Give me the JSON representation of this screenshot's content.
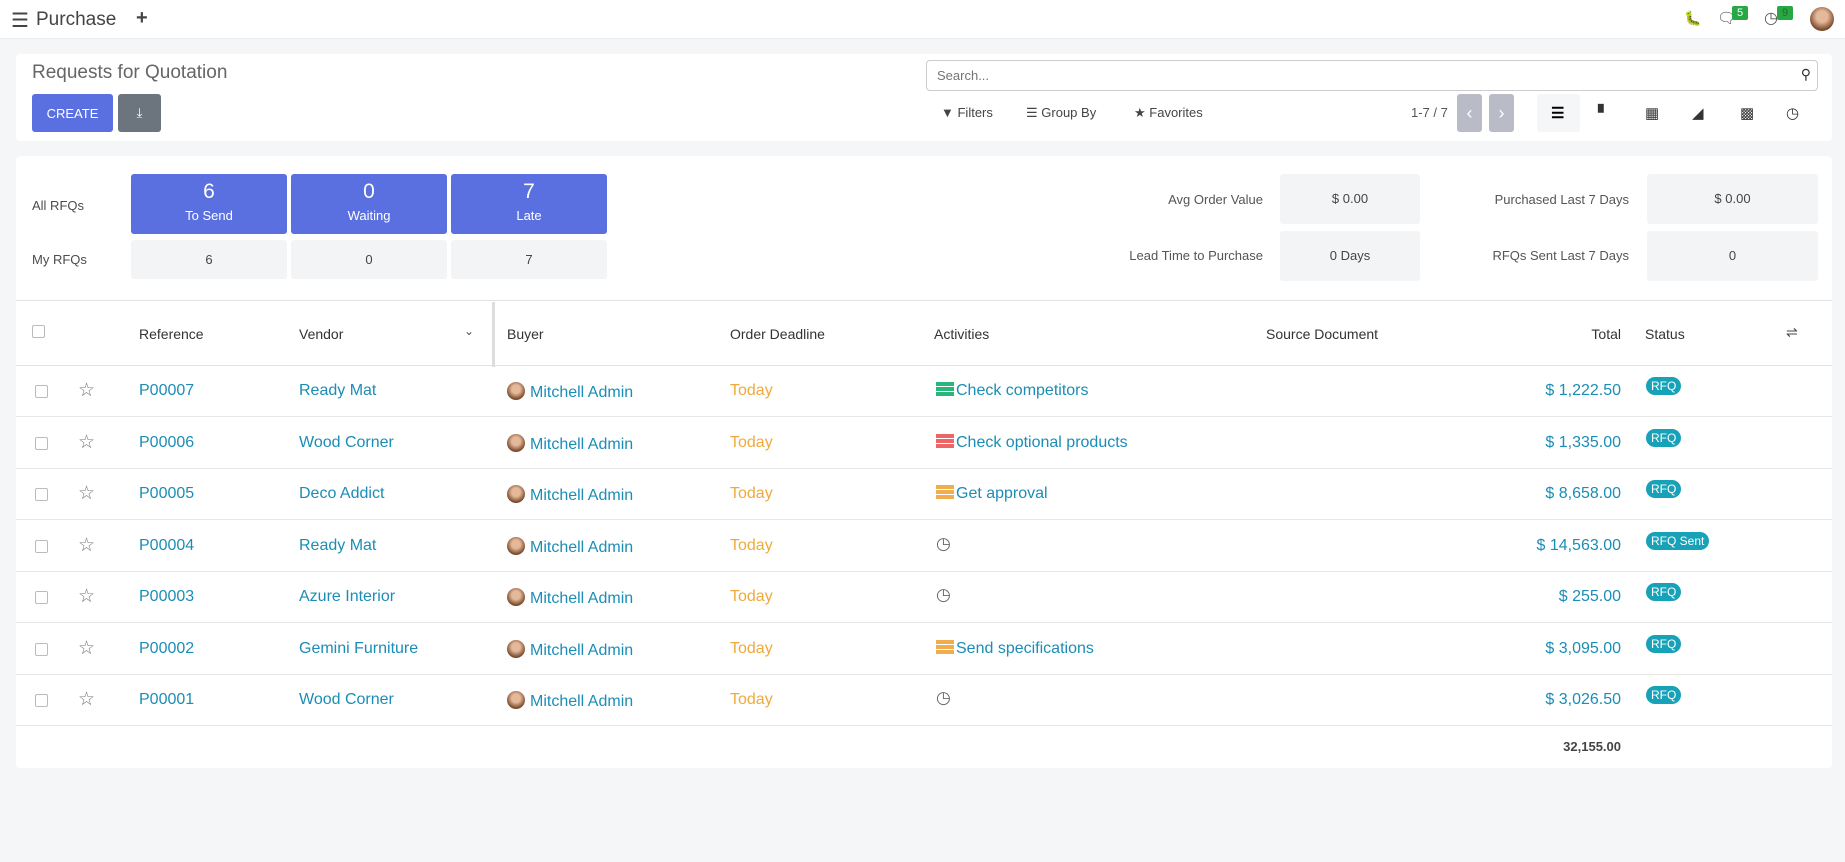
{
  "topbar": {
    "app_title": "Purchase",
    "menu_icon": "hamburger-icon",
    "new_icon": "plus-icon",
    "messages_count": "5",
    "activities_count": "9"
  },
  "control": {
    "title": "Requests for Quotation",
    "create_label": "CREATE",
    "download_icon": "download-icon",
    "search_placeholder": "Search...",
    "filters_label": "Filters",
    "groupby_label": "Group By",
    "favorites_label": "Favorites",
    "pager": "1-7 / 7",
    "views": [
      "list",
      "kanban",
      "pivot",
      "graph",
      "calendar",
      "activity"
    ],
    "active_view": "list"
  },
  "dashboard": {
    "all_label": "All RFQs",
    "my_label": "My RFQs",
    "tiles": [
      {
        "value": "6",
        "label": "To Send",
        "mine": "6"
      },
      {
        "value": "0",
        "label": "Waiting",
        "mine": "0"
      },
      {
        "value": "7",
        "label": "Late",
        "mine": "7"
      }
    ],
    "stats": [
      {
        "label": "Avg Order Value",
        "value": "$ 0.00"
      },
      {
        "label": "Purchased Last 7 Days",
        "value": "$ 0.00"
      },
      {
        "label": "Lead Time to Purchase",
        "value": "0 Days"
      },
      {
        "label": "RFQs Sent Last 7 Days",
        "value": "0"
      }
    ],
    "accent": "#5a6fe0"
  },
  "table": {
    "headers": {
      "reference": "Reference",
      "vendor": "Vendor",
      "buyer": "Buyer",
      "deadline": "Order Deadline",
      "activities": "Activities",
      "source": "Source Document",
      "total": "Total",
      "status": "Status"
    },
    "rows": [
      {
        "ref": "P00007",
        "vendor": "Ready Mat",
        "buyer": "Mitchell Admin",
        "deadline": "Today",
        "activity": "Check competitors",
        "activity_color": "#28b67a",
        "total": "$ 1,222.50",
        "status": "RFQ"
      },
      {
        "ref": "P00006",
        "vendor": "Wood Corner",
        "buyer": "Mitchell Admin",
        "deadline": "Today",
        "activity": "Check optional products",
        "activity_color": "#ef6464",
        "total": "$ 1,335.00",
        "status": "RFQ"
      },
      {
        "ref": "P00005",
        "vendor": "Deco Addict",
        "buyer": "Mitchell Admin",
        "deadline": "Today",
        "activity": "Get approval",
        "activity_color": "#f0ad4e",
        "total": "$ 8,658.00",
        "status": "RFQ"
      },
      {
        "ref": "P00004",
        "vendor": "Ready Mat",
        "buyer": "Mitchell Admin",
        "deadline": "Today",
        "activity": "",
        "activity_color": "",
        "total": "$ 14,563.00",
        "status": "RFQ Sent"
      },
      {
        "ref": "P00003",
        "vendor": "Azure Interior",
        "buyer": "Mitchell Admin",
        "deadline": "Today",
        "activity": "",
        "activity_color": "",
        "total": "$ 255.00",
        "status": "RFQ"
      },
      {
        "ref": "P00002",
        "vendor": "Gemini Furniture",
        "buyer": "Mitchell Admin",
        "deadline": "Today",
        "activity": "Send specifications",
        "activity_color": "#f0ad4e",
        "total": "$ 3,095.00",
        "status": "RFQ"
      },
      {
        "ref": "P00001",
        "vendor": "Wood Corner",
        "buyer": "Mitchell Admin",
        "deadline": "Today",
        "activity": "",
        "activity_color": "",
        "total": "$ 3,026.50",
        "status": "RFQ"
      }
    ],
    "grand_total": "32,155.00"
  }
}
